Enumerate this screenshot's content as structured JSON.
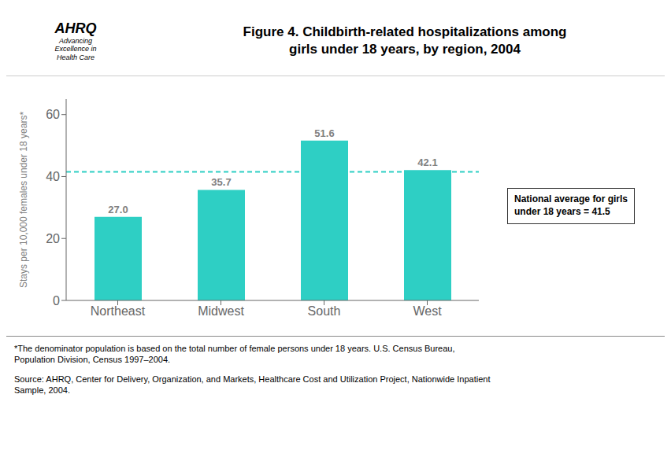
{
  "chart_data": {
    "type": "bar",
    "title": "Figure 4. Childbirth-related hospitalizations among\ngirls under 18 years, by region, 2004",
    "categories": [
      "Northeast",
      "Midwest",
      "South",
      "West"
    ],
    "values": [
      27.0,
      35.7,
      51.6,
      42.1
    ],
    "value_labels": [
      "27.0",
      "35.7",
      "51.6",
      "42.1"
    ],
    "data_labels": true,
    "color": "#2ecfc4",
    "ylabel": "Stays per 10,000 females under 18 years*",
    "ylim": [
      0,
      65
    ],
    "yticks": [
      0,
      20,
      40,
      60
    ],
    "grid": false,
    "reference_line": {
      "value": 41.5,
      "label": "National average for girls\nunder 18 years = 41.5",
      "color": "#2ecfc4"
    },
    "annotations": [
      "AHRQ",
      "Advancing\nExcellence in\nHealth Care"
    ],
    "footnotes": [
      "*The denominator population is based on the total number of female persons under 18 years. U.S. Census Bureau,\nPopulation Division, Census 1997–2004.",
      "Source: AHRQ, Center for Delivery, Organization, and Markets, Healthcare Cost and Utilization Project, Nationwide Inpatient\nSample, 2004."
    ]
  }
}
